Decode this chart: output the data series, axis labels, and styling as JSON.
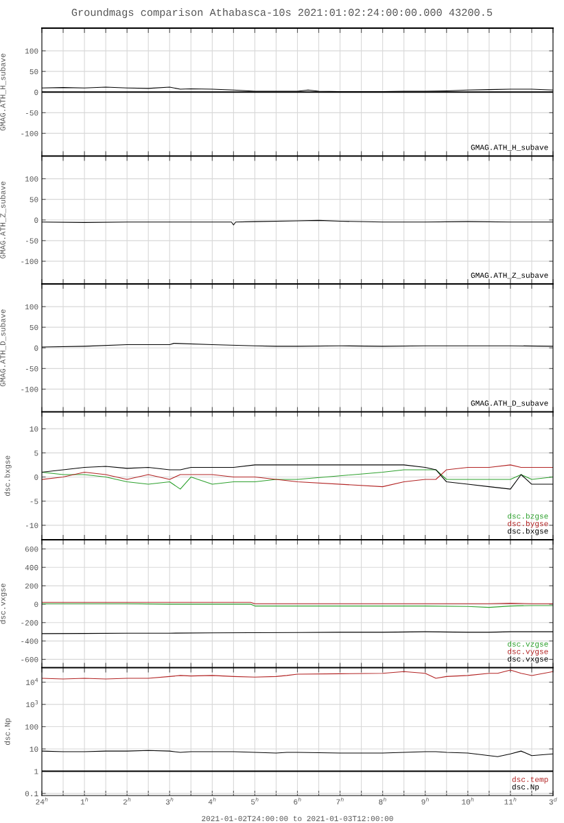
{
  "chart_data": [
    {
      "type": "line",
      "title": "Groundmags comparison Athabasca-10s 2021:01:02:24:00:00.000 43200.5",
      "ylabel": "GMAG.ATH_H_subave",
      "legend": "bottom right",
      "grid": true,
      "tick_labels": "y",
      "xlim": [
        "2021-01-03T00:00",
        "2021-01-03T12:00"
      ],
      "ylim": [
        -155,
        155
      ],
      "yticks": [
        -100,
        -50,
        0,
        50,
        100
      ],
      "x": [
        "2021-01-03T00:00",
        "2021-01-03T00:30",
        "2021-01-03T01:00",
        "2021-01-03T01:30",
        "2021-01-03T02:00",
        "2021-01-03T02:30",
        "2021-01-03T03:00",
        "2021-01-03T03:15",
        "2021-01-03T03:30",
        "2021-01-03T04:00",
        "2021-01-03T04:30",
        "2021-01-03T05:00",
        "2021-01-03T05:30",
        "2021-01-03T06:00",
        "2021-01-03T06:15",
        "2021-01-03T06:30",
        "2021-01-03T07:00",
        "2021-01-03T07:30",
        "2021-01-03T08:00",
        "2021-01-03T08:30",
        "2021-01-03T09:00",
        "2021-01-03T09:30",
        "2021-01-03T10:00",
        "2021-01-03T10:30",
        "2021-01-03T11:00",
        "2021-01-03T11:30",
        "2021-01-03T12:00"
      ],
      "ref_lines": [
        {
          "axis": "y",
          "value": 0,
          "label": null,
          "color": "#000000"
        }
      ],
      "series": [
        {
          "name": "GMAG.ATH_H_subave",
          "color": "#000000",
          "values": [
            10,
            11,
            10,
            12,
            10,
            9,
            12,
            7,
            8,
            7,
            5,
            2,
            2,
            2,
            5,
            2,
            1,
            1,
            1,
            2,
            2,
            3,
            5,
            6,
            7,
            7,
            5
          ]
        }
      ]
    },
    {
      "type": "line",
      "ylabel": "GMAG.ATH_Z_subave",
      "legend": "bottom right",
      "grid": true,
      "tick_labels": "y",
      "xlim": [
        "2021-01-03T00:00",
        "2021-01-03T12:00"
      ],
      "ylim": [
        -155,
        155
      ],
      "yticks": [
        -100,
        -50,
        0,
        50,
        100
      ],
      "x": [
        "2021-01-03T00:00",
        "2021-01-03T01:00",
        "2021-01-03T02:00",
        "2021-01-03T03:00",
        "2021-01-03T04:00",
        "2021-01-03T04:27",
        "2021-01-03T04:30",
        "2021-01-03T04:33",
        "2021-01-03T05:00",
        "2021-01-03T06:00",
        "2021-01-03T06:30",
        "2021-01-03T07:00",
        "2021-01-03T08:00",
        "2021-01-03T09:00",
        "2021-01-03T10:00",
        "2021-01-03T11:00",
        "2021-01-03T12:00"
      ],
      "series": [
        {
          "name": "GMAG.ATH_Z_subave",
          "color": "#000000",
          "values": [
            -5,
            -6,
            -5,
            -5,
            -5,
            -5,
            -12,
            -5,
            -4,
            -2,
            -1,
            -3,
            -5,
            -5,
            -4,
            -5,
            -5
          ]
        }
      ]
    },
    {
      "type": "line",
      "ylabel": "GMAG.ATH_D_subave",
      "legend": "bottom right",
      "grid": true,
      "tick_labels": "y",
      "xlim": [
        "2021-01-03T00:00",
        "2021-01-03T12:00"
      ],
      "ylim": [
        -155,
        155
      ],
      "yticks": [
        -100,
        -50,
        0,
        50,
        100
      ],
      "x": [
        "2021-01-03T00:00",
        "2021-01-03T01:00",
        "2021-01-03T02:00",
        "2021-01-03T03:00",
        "2021-01-03T03:06",
        "2021-01-03T04:00",
        "2021-01-03T05:00",
        "2021-01-03T05:30",
        "2021-01-03T06:00",
        "2021-01-03T07:00",
        "2021-01-03T08:00",
        "2021-01-03T09:00",
        "2021-01-03T10:00",
        "2021-01-03T11:00",
        "2021-01-03T12:00"
      ],
      "series": [
        {
          "name": "GMAG.ATH_D_subave",
          "color": "#000000",
          "values": [
            2,
            4,
            8,
            8,
            11,
            8,
            5,
            4,
            4,
            5,
            4,
            5,
            5,
            5,
            4
          ]
        }
      ]
    },
    {
      "type": "line",
      "ylabel": "dsc.bxgse",
      "legend": "bottom right",
      "grid": true,
      "tick_labels": "y",
      "xlim": [
        "2021-01-03T00:00",
        "2021-01-03T12:00"
      ],
      "ylim": [
        -13,
        13.5
      ],
      "yticks": [
        -10,
        -5,
        0,
        5,
        10
      ],
      "x": [
        "2021-01-03T00:00",
        "2021-01-03T00:30",
        "2021-01-03T01:00",
        "2021-01-03T01:30",
        "2021-01-03T02:00",
        "2021-01-03T02:30",
        "2021-01-03T03:00",
        "2021-01-03T03:15",
        "2021-01-03T03:30",
        "2021-01-03T04:00",
        "2021-01-03T04:30",
        "2021-01-03T05:00",
        "2021-01-03T05:30",
        "2021-01-03T06:00",
        "2021-01-03T08:00",
        "2021-01-03T08:30",
        "2021-01-03T09:00",
        "2021-01-03T09:15",
        "2021-01-03T09:30",
        "2021-01-03T10:00",
        "2021-01-03T10:30",
        "2021-01-03T11:00",
        "2021-01-03T11:15",
        "2021-01-03T11:30",
        "2021-01-03T12:00"
      ],
      "series": [
        {
          "name": "dsc.bzgse",
          "color": "#2ca02c",
          "values": [
            1,
            0.5,
            0.5,
            0,
            -1,
            -1.5,
            -1,
            -2.5,
            0,
            -1.5,
            -1,
            -1,
            -0.5,
            -0.5,
            1,
            1.5,
            1.5,
            1.5,
            -0.5,
            -0.5,
            -0.5,
            -0.5,
            0.5,
            -0.5,
            0
          ]
        },
        {
          "name": "dsc.bygse",
          "color": "#b22222",
          "values": [
            -0.5,
            0,
            1,
            0.5,
            -0.5,
            0.5,
            -0.5,
            0.5,
            0.5,
            0.5,
            0,
            0,
            -0.5,
            -1,
            -2,
            -1,
            -0.5,
            -0.5,
            1.5,
            2,
            2,
            2.5,
            2,
            2,
            2
          ]
        },
        {
          "name": "dsc.bxgse",
          "color": "#000000",
          "values": [
            1,
            1.5,
            2,
            2.2,
            1.8,
            2,
            1.5,
            1.5,
            2,
            2,
            2,
            2.5,
            2.5,
            2.5,
            2.5,
            2.5,
            2,
            1.5,
            -1,
            -1.5,
            -2,
            -2.5,
            0.5,
            -1.5,
            -1.5
          ]
        }
      ]
    },
    {
      "type": "line",
      "ylabel": "dsc.vxgse",
      "legend": "bottom right",
      "grid": true,
      "tick_labels": "y",
      "xlim": [
        "2021-01-03T00:00",
        "2021-01-03T12:00"
      ],
      "ylim": [
        -690,
        700
      ],
      "yticks": [
        -600,
        -400,
        -200,
        0,
        200,
        400,
        600
      ],
      "x": [
        "2021-01-03T00:00",
        "2021-01-03T01:00",
        "2021-01-03T02:00",
        "2021-01-03T03:00",
        "2021-01-03T04:00",
        "2021-01-03T04:54",
        "2021-01-03T05:00",
        "2021-01-03T06:00",
        "2021-01-03T07:00",
        "2021-01-03T08:00",
        "2021-01-03T09:00",
        "2021-01-03T10:00",
        "2021-01-03T10:30",
        "2021-01-03T11:00",
        "2021-01-03T11:30",
        "2021-01-03T12:00"
      ],
      "series": [
        {
          "name": "dsc.vzgse",
          "color": "#2ca02c",
          "values": [
            5,
            5,
            5,
            0,
            0,
            0,
            -20,
            -20,
            -20,
            -20,
            -20,
            -25,
            -35,
            -20,
            -15,
            -15
          ]
        },
        {
          "name": "dsc.vygse",
          "color": "#b22222",
          "values": [
            20,
            20,
            20,
            20,
            20,
            20,
            5,
            5,
            5,
            5,
            5,
            5,
            5,
            10,
            5,
            5
          ]
        },
        {
          "name": "dsc.vxgse",
          "color": "#000000",
          "values": [
            -320,
            -318,
            -315,
            -315,
            -312,
            -310,
            -310,
            -308,
            -305,
            -305,
            -300,
            -305,
            -305,
            -300,
            -300,
            -300
          ]
        }
      ]
    },
    {
      "type": "line",
      "ylabel": "dsc.Np",
      "xlabel": "2021-01-02T24:00:00 to 2021-01-03T12:00:00",
      "legend": "bottom right",
      "grid": true,
      "log": "y",
      "xlim": [
        "2021-01-03T00:00",
        "2021-01-03T12:00"
      ],
      "ylim": [
        0.08,
        45000
      ],
      "yticks": [
        0.1,
        1,
        10,
        100,
        {
          "value": 1000,
          "label": "10$^{3}$"
        },
        {
          "value": 10000,
          "label": "10$^{4}$"
        }
      ],
      "xticks": [
        {
          "value": "2021-01-03T00:00",
          "label": "24$^{h}$"
        },
        {
          "value": "2021-01-03T00:30",
          "label": null
        },
        {
          "value": "2021-01-03T01:00",
          "label": "1$^{h}$"
        },
        {
          "value": "2021-01-03T01:30",
          "label": null
        },
        {
          "value": "2021-01-03T02:00",
          "label": "2$^{h}$"
        },
        {
          "value": "2021-01-03T02:30",
          "label": null
        },
        {
          "value": "2021-01-03T03:00",
          "label": "3$^{h}$"
        },
        {
          "value": "2021-01-03T03:30",
          "label": null
        },
        {
          "value": "2021-01-03T04:00",
          "label": "4$^{h}$"
        },
        {
          "value": "2021-01-03T04:30",
          "label": null
        },
        {
          "value": "2021-01-03T05:00",
          "label": "5$^{h}$"
        },
        {
          "value": "2021-01-03T05:30",
          "label": null
        },
        {
          "value": "2021-01-03T06:00",
          "label": "6$^{h}$"
        },
        {
          "value": "2021-01-03T06:30",
          "label": null
        },
        {
          "value": "2021-01-03T07:00",
          "label": "7$^{h}$"
        },
        {
          "value": "2021-01-03T07:30",
          "label": null
        },
        {
          "value": "2021-01-03T08:00",
          "label": "8$^{h}$"
        },
        {
          "value": "2021-01-03T08:30",
          "label": null
        },
        {
          "value": "2021-01-03T09:00",
          "label": "9$^{h}$"
        },
        {
          "value": "2021-01-03T09:30",
          "label": null
        },
        {
          "value": "2021-01-03T10:00",
          "label": "10$^{h}$"
        },
        {
          "value": "2021-01-03T10:30",
          "label": null
        },
        {
          "value": "2021-01-03T11:00",
          "label": "11$^{h}$"
        },
        {
          "value": "2021-01-03T11:30",
          "label": null
        },
        {
          "value": "2021-01-03T12:00",
          "label": "3$^{d}$"
        }
      ],
      "x": [
        "2021-01-03T00:00",
        "2021-01-03T00:30",
        "2021-01-03T01:00",
        "2021-01-03T01:30",
        "2021-01-03T02:00",
        "2021-01-03T02:30",
        "2021-01-03T03:00",
        "2021-01-03T03:15",
        "2021-01-03T03:30",
        "2021-01-03T04:00",
        "2021-01-03T04:30",
        "2021-01-03T05:00",
        "2021-01-03T05:30",
        "2021-01-03T05:45",
        "2021-01-03T06:00",
        "2021-01-03T07:00",
        "2021-01-03T08:00",
        "2021-01-03T08:30",
        "2021-01-03T09:00",
        "2021-01-03T09:15",
        "2021-01-03T09:30",
        "2021-01-03T10:00",
        "2021-01-03T10:30",
        "2021-01-03T10:42",
        "2021-01-03T11:00",
        "2021-01-03T11:15",
        "2021-01-03T11:30",
        "2021-01-03T12:00"
      ],
      "ref_lines": [
        {
          "axis": "y",
          "value": 1,
          "label": null,
          "color": "#000000"
        }
      ],
      "series": [
        {
          "name": "dsc.temp",
          "color": "#b22222",
          "values": [
            15000,
            14000,
            15000,
            14000,
            15000,
            15000,
            18000,
            20000,
            19000,
            20000,
            18000,
            17000,
            18000,
            20000,
            23000,
            24000,
            25000,
            30000,
            25000,
            15000,
            18000,
            20000,
            25000,
            25000,
            35000,
            25000,
            20000,
            30000
          ]
        },
        {
          "name": "dsc.Np",
          "color": "#000000",
          "values": [
            8,
            7.5,
            7.5,
            8,
            8,
            8.5,
            8,
            7,
            7.5,
            7.5,
            7.5,
            7,
            6.5,
            7,
            7,
            6.5,
            6.5,
            7,
            7.5,
            7.5,
            7,
            6.5,
            5,
            4.5,
            6,
            8,
            5,
            6
          ]
        }
      ]
    }
  ]
}
